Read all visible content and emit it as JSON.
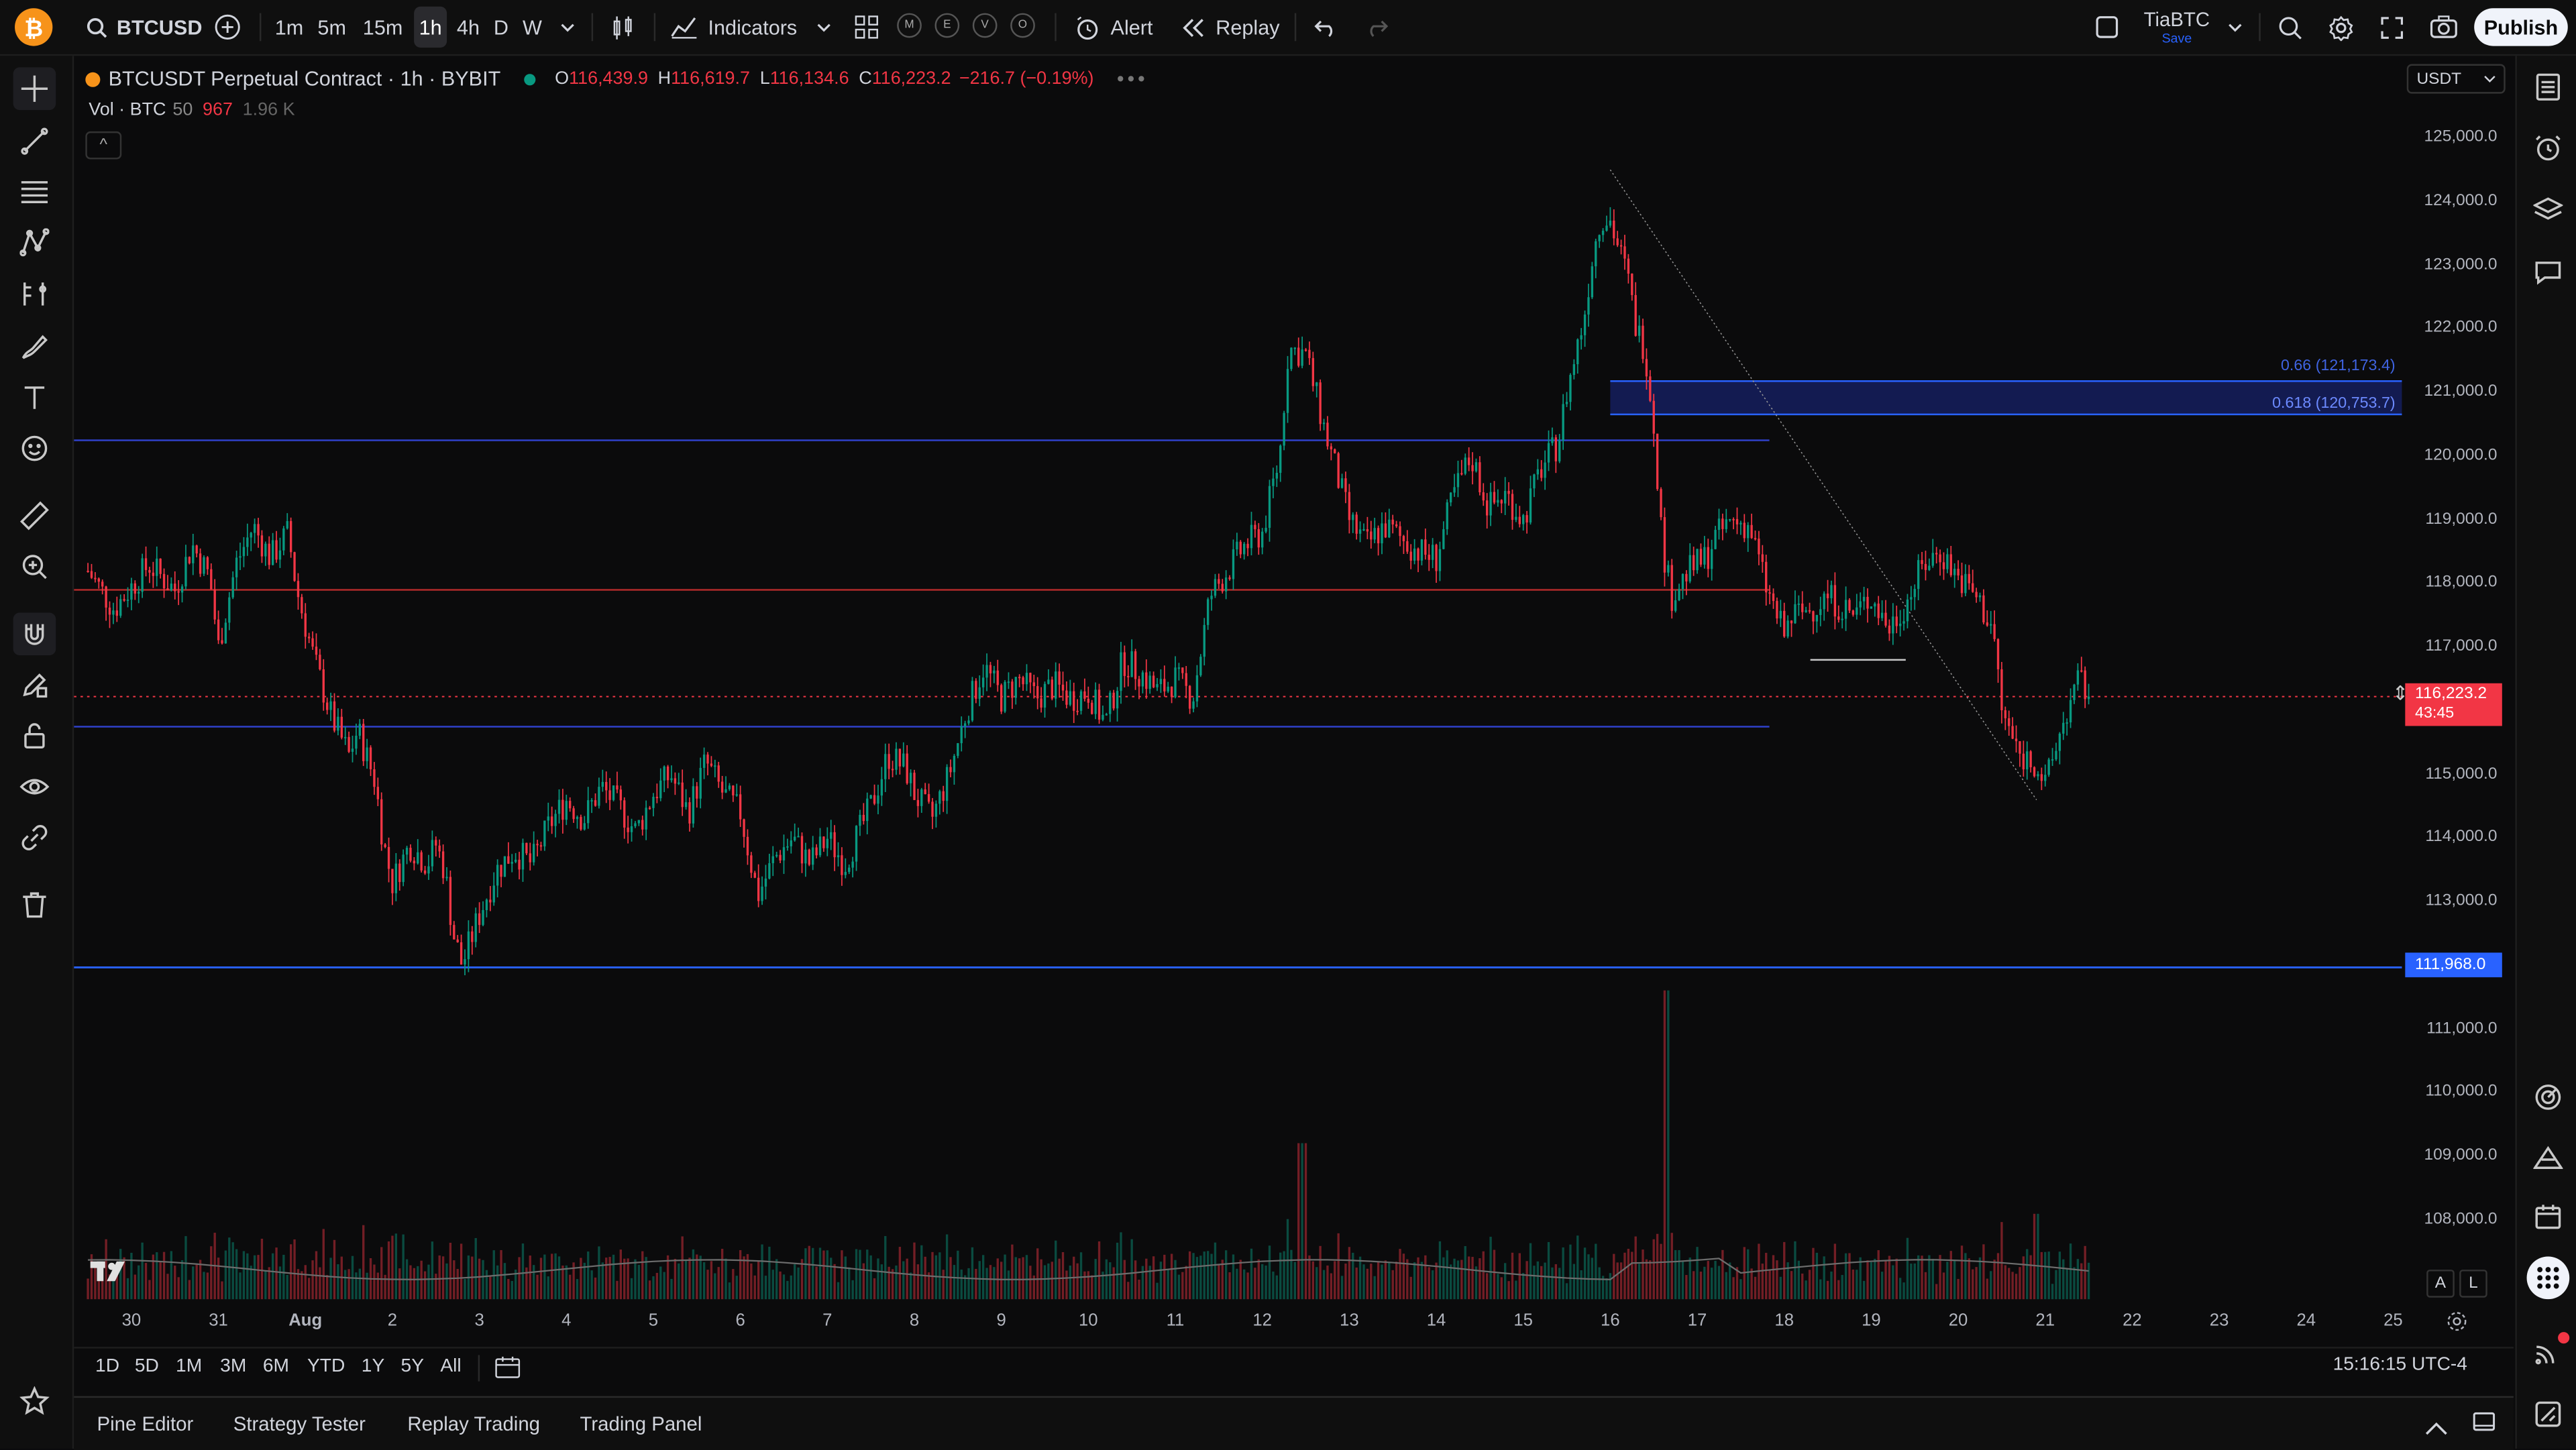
{
  "toolbar": {
    "symbol": "BTCUSD",
    "timeframes": [
      "1m",
      "5m",
      "15m",
      "1h",
      "4h",
      "D",
      "W"
    ],
    "active_timeframe": "1h",
    "indicators_label": "Indicators",
    "circles": [
      "M",
      "E",
      "V",
      "O"
    ],
    "alert_label": "Alert",
    "replay_label": "Replay",
    "user_name": "TiaBTC",
    "user_sub": "Save",
    "publish_label": "Publish"
  },
  "legend": {
    "title": "BTCUSDT Perpetual Contract · 1h · BYBIT",
    "o_label": "O",
    "o_value": "116,439.9",
    "h_label": "H",
    "h_value": "116,619.7",
    "l_label": "L",
    "l_value": "116,134.6",
    "c_label": "C",
    "c_value": "116,223.2",
    "change": "−216.7 (−0.19%)",
    "vol_label": "Vol · BTC",
    "vol_len": "50",
    "vol_value": "967",
    "vol_ma": "1.96 K",
    "currency": "USDT"
  },
  "chart_data": {
    "type": "candlestick",
    "symbol": "BTCUSDT Perpetual Contract",
    "interval": "1h",
    "exchange": "BYBIT",
    "y_ticks": [
      "125,000.0",
      "124,000.0",
      "123,000.0",
      "122,000.0",
      "121,000.0",
      "120,000.0",
      "119,000.0",
      "118,000.0",
      "117,000.0",
      "115,000.0",
      "114,000.0",
      "113,000.0",
      "111,000.0",
      "110,000.0",
      "109,000.0",
      "108,000.0"
    ],
    "ylim": [
      107700,
      125700
    ],
    "x_ticks": [
      "30",
      "31",
      "Aug",
      "2",
      "3",
      "4",
      "5",
      "6",
      "7",
      "8",
      "9",
      "10",
      "11",
      "12",
      "13",
      "14",
      "15",
      "16",
      "17",
      "18",
      "19",
      "20",
      "21",
      "22",
      "23",
      "24",
      "25"
    ],
    "close_path": [
      [
        29.5,
        118200
      ],
      [
        29.8,
        117600
      ],
      [
        30.2,
        118300
      ],
      [
        30.5,
        117900
      ],
      [
        30.7,
        118600
      ],
      [
        30.9,
        118100
      ],
      [
        31.0,
        117000
      ],
      [
        31.2,
        118300
      ],
      [
        31.4,
        118900
      ],
      [
        31.6,
        118400
      ],
      [
        31.8,
        118800
      ],
      [
        31.9,
        117900
      ],
      [
        32.1,
        116800
      ],
      [
        32.3,
        115900
      ],
      [
        32.5,
        115300
      ],
      [
        32.6,
        115700
      ],
      [
        32.8,
        114900
      ],
      [
        32.9,
        113900
      ],
      [
        33.0,
        113300
      ],
      [
        33.2,
        113900
      ],
      [
        33.4,
        113600
      ],
      [
        33.5,
        113900
      ],
      [
        33.6,
        113500
      ],
      [
        33.7,
        112500
      ],
      [
        33.8,
        112000
      ],
      [
        34.0,
        112800
      ],
      [
        34.2,
        113500
      ],
      [
        34.4,
        113800
      ],
      [
        34.6,
        113600
      ],
      [
        34.8,
        114200
      ],
      [
        35.0,
        114600
      ],
      [
        35.2,
        114300
      ],
      [
        35.4,
        114800
      ],
      [
        35.6,
        114500
      ],
      [
        35.8,
        114100
      ],
      [
        36.0,
        114700
      ],
      [
        36.2,
        115000
      ],
      [
        36.4,
        114400
      ],
      [
        36.6,
        115200
      ],
      [
        36.8,
        114700
      ],
      [
        37.0,
        114400
      ],
      [
        37.2,
        113100
      ],
      [
        37.4,
        113700
      ],
      [
        37.6,
        114000
      ],
      [
        37.8,
        113600
      ],
      [
        38.0,
        114000
      ],
      [
        38.2,
        113600
      ],
      [
        38.5,
        114500
      ],
      [
        38.7,
        115300
      ],
      [
        38.9,
        115100
      ],
      [
        39.0,
        114700
      ],
      [
        39.2,
        114300
      ],
      [
        39.4,
        115000
      ],
      [
        39.6,
        116000
      ],
      [
        39.8,
        116700
      ],
      [
        40.0,
        116200
      ],
      [
        40.2,
        116500
      ],
      [
        40.4,
        116200
      ],
      [
        40.6,
        116400
      ],
      [
        40.8,
        116200
      ],
      [
        41.0,
        116300
      ],
      [
        41.2,
        115800
      ],
      [
        41.4,
        116800
      ],
      [
        41.6,
        116600
      ],
      [
        41.8,
        116300
      ],
      [
        42.0,
        116500
      ],
      [
        42.2,
        116200
      ],
      [
        42.4,
        117800
      ],
      [
        42.6,
        118200
      ],
      [
        42.8,
        118600
      ],
      [
        43.0,
        118800
      ],
      [
        43.2,
        120000
      ],
      [
        43.3,
        121700
      ],
      [
        43.5,
        121600
      ],
      [
        43.7,
        120500
      ],
      [
        43.9,
        119500
      ],
      [
        44.0,
        119000
      ],
      [
        44.2,
        118600
      ],
      [
        44.4,
        118900
      ],
      [
        44.6,
        118700
      ],
      [
        44.8,
        118500
      ],
      [
        45.0,
        118400
      ],
      [
        45.2,
        119400
      ],
      [
        45.4,
        120000
      ],
      [
        45.6,
        119200
      ],
      [
        45.8,
        119400
      ],
      [
        46.0,
        119000
      ],
      [
        46.2,
        119800
      ],
      [
        46.4,
        120200
      ],
      [
        46.5,
        121000
      ],
      [
        46.7,
        122200
      ],
      [
        46.8,
        123200
      ],
      [
        46.9,
        123800
      ],
      [
        47.0,
        123700
      ],
      [
        47.2,
        122800
      ],
      [
        47.3,
        122000
      ],
      [
        47.4,
        121700
      ],
      [
        47.5,
        120500
      ],
      [
        47.6,
        118600
      ],
      [
        47.7,
        117800
      ],
      [
        47.9,
        118200
      ],
      [
        48.1,
        118400
      ],
      [
        48.2,
        118700
      ],
      [
        48.4,
        119000
      ],
      [
        48.6,
        118900
      ],
      [
        48.8,
        117900
      ],
      [
        49.0,
        117200
      ],
      [
        49.1,
        117500
      ],
      [
        49.3,
        117600
      ],
      [
        49.5,
        117800
      ],
      [
        49.8,
        117500
      ],
      [
        50.0,
        117800
      ],
      [
        50.2,
        117300
      ],
      [
        50.4,
        117700
      ],
      [
        50.6,
        118300
      ],
      [
        50.8,
        118500
      ],
      [
        51.0,
        118100
      ],
      [
        51.2,
        117800
      ],
      [
        51.4,
        117300
      ],
      [
        51.5,
        116000
      ],
      [
        51.7,
        115300
      ],
      [
        51.9,
        115200
      ],
      [
        52.0,
        114800
      ],
      [
        52.2,
        115800
      ],
      [
        52.4,
        116500
      ],
      [
        52.5,
        116223
      ]
    ],
    "horizontal_levels": [
      {
        "price": 120250,
        "color": "#2f41c9"
      },
      {
        "price": 117900,
        "color": "#b22a2a"
      },
      {
        "price": 115750,
        "color": "#2f41c9"
      },
      {
        "price": 111968,
        "color": "#2962ff",
        "label": "111,968.0"
      },
      {
        "price": 116800,
        "color": "#c8c8c8"
      }
    ],
    "fib_zone": {
      "labels": [
        "0.66 (121,173.4)",
        "0.618 (120,753.7)"
      ],
      "color": "#2962ff"
    },
    "trendline": {
      "from": [
        47.0,
        124500
      ],
      "to": [
        51.9,
        114600
      ]
    },
    "last_price": {
      "value": "116,223.2",
      "countdown": "43:45"
    },
    "time_display": "15:16:15 UTC-4"
  },
  "range_buttons": [
    "1D",
    "5D",
    "1M",
    "3M",
    "6M",
    "YTD",
    "1Y",
    "5Y",
    "All"
  ],
  "bottom_tabs": [
    "Pine Editor",
    "Strategy Tester",
    "Replay Trading",
    "Trading Panel"
  ],
  "misc": {
    "collapse": "^",
    "a_label": "A",
    "l_label": "L"
  },
  "colors": {
    "up": "#089981",
    "down": "#f23645",
    "accent": "#2962ff",
    "bg": "#0b0b0c"
  }
}
